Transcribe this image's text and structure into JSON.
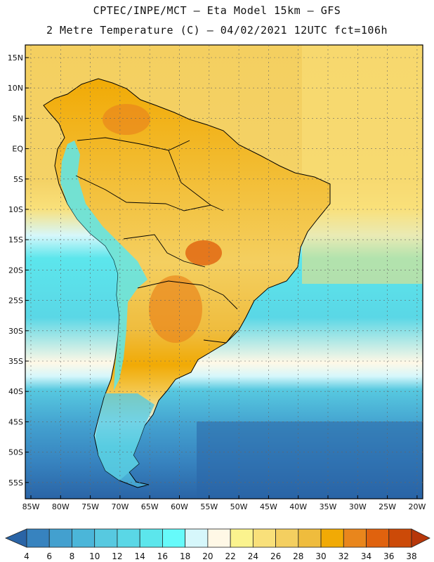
{
  "header": {
    "line1": "CPTEC/INPE/MCT –  Eta Model 15km – GFS",
    "line2": "2 Metre Temperature (C) – 04/02/2021 12UTC fct=106h"
  },
  "map": {
    "lat_labels": [
      "15N",
      "10N",
      "5N",
      "EQ",
      "5S",
      "10S",
      "15S",
      "20S",
      "25S",
      "30S",
      "35S",
      "40S",
      "45S",
      "50S",
      "55S"
    ],
    "lon_labels": [
      "85W",
      "80W",
      "75W",
      "70W",
      "65W",
      "60W",
      "55W",
      "50W",
      "45W",
      "40W",
      "35W",
      "30W",
      "25W",
      "20W"
    ]
  },
  "colorbar": {
    "labels": [
      "4",
      "6",
      "8",
      "10",
      "12",
      "14",
      "16",
      "18",
      "20",
      "22",
      "24",
      "26",
      "28",
      "30",
      "32",
      "34",
      "36",
      "38"
    ],
    "colors": [
      "#2a64a6",
      "#3783bf",
      "#43a0cf",
      "#4bb6d9",
      "#57c9e0",
      "#5ad7e6",
      "#5ce6ec",
      "#66fafa",
      "#d6f7fb",
      "#fff8e6",
      "#fbf38e",
      "#f9e07a",
      "#f4cf60",
      "#efbc3d",
      "#f1aa05",
      "#e9861c",
      "#e0620e",
      "#cc4a08",
      "#b7370a"
    ]
  }
}
